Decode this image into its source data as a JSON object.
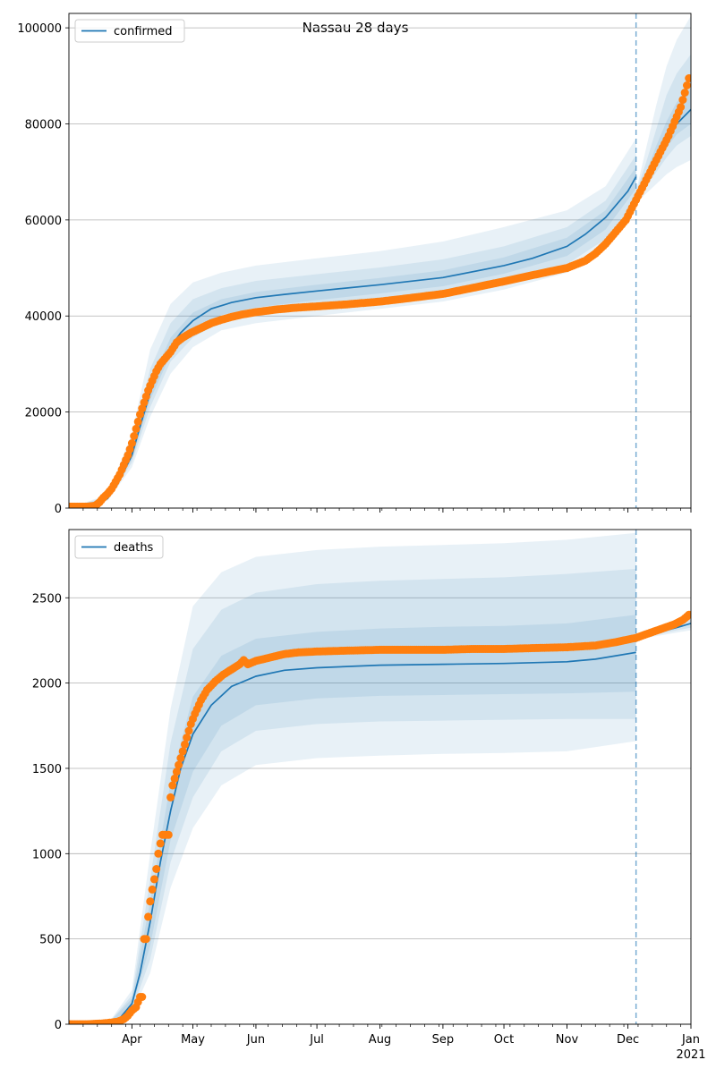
{
  "title": "Nassau 28 days",
  "colors": {
    "model": "#1f77b4",
    "observed": "#ff7f0e",
    "band": "#1f77b4",
    "grid": "#b0b0b0",
    "forecast_line": "#1f77b4"
  },
  "chart_data": [
    {
      "type": "line",
      "panel": "top",
      "legend": {
        "label": "confirmed",
        "placement": "top-left"
      },
      "xlim": [
        "2020-03-01",
        "2021-01-01"
      ],
      "ylim": [
        0,
        103000
      ],
      "yticks": [
        0,
        20000,
        40000,
        60000,
        80000,
        100000
      ],
      "ytick_labels": [
        "0",
        "20000",
        "40000",
        "60000",
        "80000",
        "100000"
      ],
      "grid": "horizontal",
      "forecast_date": "2020-12-05",
      "model": {
        "name": "confirmed",
        "x": [
          "2020-03-01",
          "2020-03-10",
          "2020-03-20",
          "2020-03-25",
          "2020-04-01",
          "2020-04-05",
          "2020-04-10",
          "2020-04-15",
          "2020-04-20",
          "2020-04-25",
          "2020-05-01",
          "2020-05-10",
          "2020-05-20",
          "2020-06-01",
          "2020-06-15",
          "2020-07-01",
          "2020-08-01",
          "2020-09-01",
          "2020-10-01",
          "2020-10-15",
          "2020-11-01",
          "2020-11-10",
          "2020-11-20",
          "2020-12-01",
          "2020-12-05"
        ],
        "y": [
          0,
          0,
          2000,
          5000,
          11000,
          17000,
          24000,
          29500,
          33500,
          36500,
          39000,
          41500,
          42800,
          43800,
          44500,
          45200,
          46500,
          48000,
          50500,
          52000,
          54500,
          57000,
          60500,
          66000,
          69000
        ]
      },
      "model_forecast": {
        "x": [
          "2020-12-05",
          "2020-12-10",
          "2020-12-15",
          "2020-12-20",
          "2020-12-25",
          "2021-01-01"
        ],
        "y": [
          65000,
          68500,
          72500,
          76500,
          80000,
          83000
        ]
      },
      "bands": [
        {
          "x": [
            "2020-03-01",
            "2020-03-20",
            "2020-04-01",
            "2020-04-10",
            "2020-04-20",
            "2020-05-01",
            "2020-05-15",
            "2020-06-01",
            "2020-07-01",
            "2020-08-01",
            "2020-09-01",
            "2020-10-01",
            "2020-11-01",
            "2020-11-20",
            "2020-12-05"
          ],
          "lower": [
            0,
            1500,
            8500,
            19000,
            28000,
            33500,
            37000,
            38500,
            40000,
            41500,
            43000,
            45500,
            49000,
            54000,
            62000
          ],
          "upper": [
            0,
            2800,
            15500,
            33000,
            42500,
            47000,
            49000,
            50500,
            52000,
            53500,
            55500,
            58500,
            62000,
            67000,
            77000
          ]
        },
        {
          "x": [
            "2020-03-01",
            "2020-03-20",
            "2020-04-01",
            "2020-04-10",
            "2020-04-20",
            "2020-05-01",
            "2020-05-15",
            "2020-06-01",
            "2020-07-01",
            "2020-08-01",
            "2020-09-01",
            "2020-10-01",
            "2020-11-01",
            "2020-11-20",
            "2020-12-05"
          ],
          "lower": [
            0,
            1700,
            9500,
            21000,
            30500,
            35500,
            38800,
            40300,
            41800,
            43300,
            44800,
            47300,
            50800,
            56000,
            64000
          ],
          "upper": [
            0,
            2500,
            13500,
            29000,
            38500,
            43500,
            45800,
            47300,
            48700,
            50100,
            51800,
            54500,
            58500,
            64000,
            73500
          ]
        },
        {
          "x": [
            "2020-03-01",
            "2020-03-20",
            "2020-04-01",
            "2020-04-10",
            "2020-04-20",
            "2020-05-01",
            "2020-05-15",
            "2020-06-01",
            "2020-07-01",
            "2020-08-01",
            "2020-09-01",
            "2020-10-01",
            "2020-11-01",
            "2020-11-20",
            "2020-12-05"
          ],
          "lower": [
            0,
            1850,
            10200,
            22500,
            32000,
            37200,
            40200,
            41800,
            43300,
            44700,
            46200,
            48800,
            52500,
            58000,
            66500
          ],
          "upper": [
            0,
            2200,
            12000,
            26000,
            35500,
            40700,
            43500,
            45000,
            46500,
            47900,
            49500,
            52200,
            56300,
            62000,
            71000
          ]
        },
        {
          "x": [
            "2020-12-05",
            "2020-12-10",
            "2020-12-15",
            "2020-12-20",
            "2020-12-25",
            "2021-01-01"
          ],
          "lower": [
            63500,
            65500,
            67500,
            69500,
            71000,
            72500
          ],
          "upper": [
            66000,
            75000,
            84000,
            92000,
            97500,
            102500
          ]
        },
        {
          "x": [
            "2020-12-05",
            "2020-12-10",
            "2020-12-15",
            "2020-12-20",
            "2020-12-25",
            "2021-01-01"
          ],
          "lower": [
            64000,
            67000,
            70000,
            73000,
            75500,
            77500
          ],
          "upper": [
            65800,
            72000,
            79000,
            86000,
            90500,
            94500
          ]
        },
        {
          "x": [
            "2020-12-05",
            "2020-12-10",
            "2020-12-15",
            "2020-12-20",
            "2020-12-25",
            "2021-01-01"
          ],
          "lower": [
            64500,
            67800,
            71500,
            75000,
            77800,
            80000
          ],
          "upper": [
            65500,
            70000,
            75500,
            80500,
            84500,
            87500
          ]
        }
      ],
      "observed": {
        "name": "observed",
        "x": [
          "2020-03-01",
          "2020-03-05",
          "2020-03-10",
          "2020-03-14",
          "2020-03-16",
          "2020-03-18",
          "2020-03-20",
          "2020-03-22",
          "2020-03-24",
          "2020-03-26",
          "2020-03-28",
          "2020-03-30",
          "2020-04-01",
          "2020-04-03",
          "2020-04-05",
          "2020-04-07",
          "2020-04-09",
          "2020-04-11",
          "2020-04-13",
          "2020-04-15",
          "2020-04-17",
          "2020-04-20",
          "2020-04-23",
          "2020-04-26",
          "2020-04-30",
          "2020-05-05",
          "2020-05-10",
          "2020-05-15",
          "2020-05-20",
          "2020-05-25",
          "2020-06-01",
          "2020-06-10",
          "2020-06-20",
          "2020-07-01",
          "2020-07-15",
          "2020-08-01",
          "2020-08-15",
          "2020-09-01",
          "2020-09-15",
          "2020-10-01",
          "2020-10-15",
          "2020-11-01",
          "2020-11-10",
          "2020-11-15",
          "2020-11-20",
          "2020-11-25",
          "2020-11-30",
          "2020-12-03",
          "2020-12-06",
          "2020-12-09",
          "2020-12-12",
          "2020-12-15",
          "2020-12-18",
          "2020-12-21",
          "2020-12-24",
          "2020-12-27",
          "2020-12-29",
          "2020-12-31"
        ],
        "y": [
          300,
          300,
          300,
          500,
          1200,
          2200,
          3000,
          4000,
          5500,
          7000,
          9000,
          11000,
          13500,
          16500,
          19500,
          22000,
          24500,
          26500,
          28500,
          30000,
          31000,
          32500,
          34500,
          35500,
          36500,
          37500,
          38500,
          39200,
          39800,
          40300,
          40800,
          41300,
          41700,
          42000,
          42400,
          43000,
          43700,
          44600,
          45800,
          47200,
          48500,
          50000,
          51500,
          53000,
          55000,
          57500,
          60000,
          62500,
          65000,
          67500,
          70000,
          72500,
          75000,
          77500,
          80500,
          83500,
          86500,
          89500
        ]
      }
    },
    {
      "type": "line",
      "panel": "bottom",
      "legend": {
        "label": "deaths",
        "placement": "top-left"
      },
      "xlim": [
        "2020-03-01",
        "2021-01-01"
      ],
      "ylim": [
        0,
        2900
      ],
      "yticks": [
        0,
        500,
        1000,
        1500,
        2000,
        2500
      ],
      "ytick_labels": [
        "0",
        "500",
        "1000",
        "1500",
        "2000",
        "2500"
      ],
      "grid": "horizontal",
      "forecast_date": "2020-12-05",
      "xtick_labels": [
        "Apr",
        "May",
        "Jun",
        "Jul",
        "Aug",
        "Sep",
        "Oct",
        "Nov",
        "Dec",
        "Jan\n2021"
      ],
      "xtick_dates": [
        "2020-04-01",
        "2020-05-01",
        "2020-06-01",
        "2020-07-01",
        "2020-08-01",
        "2020-09-01",
        "2020-10-01",
        "2020-11-01",
        "2020-12-01",
        "2021-01-01"
      ],
      "model": {
        "name": "deaths",
        "x": [
          "2020-03-01",
          "2020-03-20",
          "2020-03-25",
          "2020-04-01",
          "2020-04-05",
          "2020-04-10",
          "2020-04-15",
          "2020-04-20",
          "2020-04-25",
          "2020-05-01",
          "2020-05-10",
          "2020-05-20",
          "2020-06-01",
          "2020-06-15",
          "2020-07-01",
          "2020-08-01",
          "2020-09-01",
          "2020-10-01",
          "2020-11-01",
          "2020-11-15",
          "2020-11-25",
          "2020-12-05"
        ],
        "y": [
          0,
          0,
          20,
          120,
          300,
          600,
          950,
          1250,
          1500,
          1700,
          1870,
          1980,
          2040,
          2075,
          2090,
          2105,
          2110,
          2115,
          2125,
          2140,
          2160,
          2180
        ]
      },
      "model_forecast": {
        "x": [
          "2020-12-05",
          "2020-12-15",
          "2020-12-25",
          "2021-01-01"
        ],
        "y": [
          2270,
          2295,
          2325,
          2350
        ]
      },
      "bands": [
        {
          "x": [
            "2020-03-01",
            "2020-03-20",
            "2020-04-01",
            "2020-04-10",
            "2020-04-20",
            "2020-05-01",
            "2020-05-15",
            "2020-06-01",
            "2020-07-01",
            "2020-08-01",
            "2020-09-01",
            "2020-10-01",
            "2020-11-01",
            "2020-12-05"
          ],
          "lower": [
            0,
            0,
            60,
            300,
            800,
            1150,
            1400,
            1520,
            1560,
            1575,
            1585,
            1590,
            1600,
            1660
          ],
          "upper": [
            0,
            0,
            200,
            1000,
            1850,
            2450,
            2650,
            2740,
            2780,
            2800,
            2810,
            2820,
            2840,
            2880
          ]
        },
        {
          "x": [
            "2020-03-01",
            "2020-03-20",
            "2020-04-01",
            "2020-04-10",
            "2020-04-20",
            "2020-05-01",
            "2020-05-15",
            "2020-06-01",
            "2020-07-01",
            "2020-08-01",
            "2020-09-01",
            "2020-10-01",
            "2020-11-01",
            "2020-12-05"
          ],
          "lower": [
            0,
            0,
            80,
            380,
            950,
            1330,
            1600,
            1720,
            1760,
            1775,
            1780,
            1785,
            1790,
            1790
          ],
          "upper": [
            0,
            0,
            170,
            850,
            1650,
            2200,
            2430,
            2530,
            2580,
            2600,
            2610,
            2620,
            2640,
            2670
          ]
        },
        {
          "x": [
            "2020-03-01",
            "2020-03-20",
            "2020-04-01",
            "2020-04-10",
            "2020-04-20",
            "2020-05-01",
            "2020-05-15",
            "2020-06-01",
            "2020-07-01",
            "2020-08-01",
            "2020-09-01",
            "2020-10-01",
            "2020-11-01",
            "2020-12-05"
          ],
          "lower": [
            0,
            0,
            95,
            460,
            1080,
            1480,
            1750,
            1870,
            1910,
            1925,
            1930,
            1935,
            1940,
            1950
          ],
          "upper": [
            0,
            0,
            150,
            720,
            1420,
            1920,
            2160,
            2260,
            2300,
            2320,
            2330,
            2335,
            2350,
            2400
          ]
        },
        {
          "x": [
            "2020-12-05",
            "2021-01-01"
          ],
          "lower": [
            2255,
            2310
          ],
          "upper": [
            2290,
            2395
          ]
        },
        {
          "x": [
            "2020-12-05",
            "2021-01-01"
          ],
          "lower": [
            2262,
            2325
          ],
          "upper": [
            2282,
            2375
          ]
        }
      ],
      "observed": {
        "name": "observed",
        "x": [
          "2020-03-01",
          "2020-03-10",
          "2020-03-18",
          "2020-03-22",
          "2020-03-25",
          "2020-03-28",
          "2020-03-30",
          "2020-04-01",
          "2020-04-03",
          "2020-04-05",
          "2020-04-06",
          "2020-04-07",
          "2020-04-08",
          "2020-04-09",
          "2020-04-10",
          "2020-04-11",
          "2020-04-12",
          "2020-04-13",
          "2020-04-14",
          "2020-04-15",
          "2020-04-16",
          "2020-04-17",
          "2020-04-18",
          "2020-04-19",
          "2020-04-20",
          "2020-04-21",
          "2020-04-22",
          "2020-04-23",
          "2020-04-24",
          "2020-04-25",
          "2020-04-26",
          "2020-04-27",
          "2020-04-28",
          "2020-04-29",
          "2020-04-30",
          "2020-05-02",
          "2020-05-05",
          "2020-05-08",
          "2020-05-12",
          "2020-05-16",
          "2020-05-20",
          "2020-05-24",
          "2020-05-26",
          "2020-05-28",
          "2020-06-01",
          "2020-06-08",
          "2020-06-15",
          "2020-06-22",
          "2020-07-01",
          "2020-07-15",
          "2020-08-01",
          "2020-08-15",
          "2020-09-01",
          "2020-09-15",
          "2020-10-01",
          "2020-10-15",
          "2020-11-01",
          "2020-11-15",
          "2020-11-25",
          "2020-12-05",
          "2020-12-12",
          "2020-12-18",
          "2020-12-24",
          "2020-12-28",
          "2020-12-31"
        ],
        "y": [
          0,
          0,
          5,
          10,
          15,
          30,
          50,
          80,
          100,
          160,
          160,
          500,
          500,
          630,
          720,
          790,
          850,
          910,
          1000,
          1060,
          1110,
          1110,
          1110,
          1110,
          1330,
          1400,
          1440,
          1480,
          1520,
          1560,
          1600,
          1640,
          1680,
          1720,
          1760,
          1820,
          1900,
          1960,
          2010,
          2050,
          2080,
          2110,
          2135,
          2110,
          2130,
          2150,
          2170,
          2180,
          2185,
          2190,
          2195,
          2195,
          2195,
          2200,
          2200,
          2205,
          2210,
          2220,
          2240,
          2265,
          2295,
          2320,
          2345,
          2370,
          2400
        ]
      }
    }
  ]
}
